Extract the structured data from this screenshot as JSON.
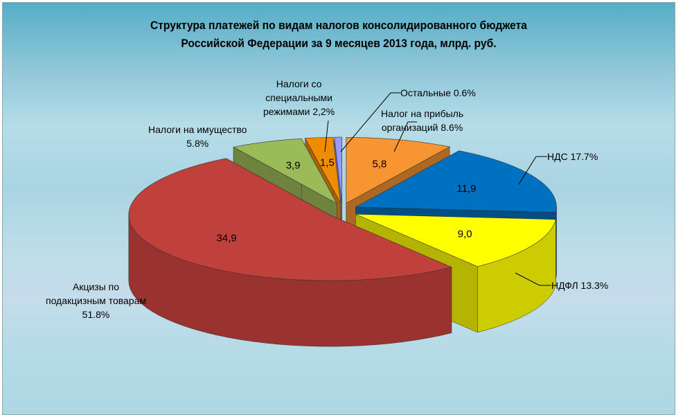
{
  "chart_data": {
    "type": "pie",
    "style": "3d-exploded",
    "title_line1": "Структура платежей по видам налогов консолидированного бюджета",
    "title_line2": "Российской Федерации за 9 месяцев  2013 года, млрд. руб.",
    "slices": [
      {
        "name": "Налог на прибыль организаций",
        "label_line1": "Налог на прибыль",
        "label_line2": "организаций 8.6%",
        "value": 5.8,
        "data_label": "5,8",
        "color": "#f79532"
      },
      {
        "name": "НДС",
        "label_line1": "НДС 17.7%",
        "value": 11.9,
        "data_label": "11,9",
        "color": "#0070c0"
      },
      {
        "name": "НДФЛ",
        "label_line1": "НДФЛ 13.3%",
        "value": 9.0,
        "data_label": "9,0",
        "color": "#ffff00"
      },
      {
        "name": "Акцизы по подакцизным товарам",
        "label_line1": "Акцизы по",
        "label_line2": "подакцизным товарам",
        "label_line3": "51.8%",
        "value": 34.9,
        "data_label": "34,9",
        "color": "#c0403c"
      },
      {
        "name": "Налоги на имущество",
        "label_line1": "Налоги на имущество",
        "label_line2": "5.8%",
        "value": 3.9,
        "data_label": "3,9",
        "color": "#9bbb59"
      },
      {
        "name": "Налоги со специальными режимами",
        "label_line1": "Налоги со",
        "label_line2": "специальными",
        "label_line3": "режимами 2,2%",
        "value": 1.5,
        "data_label": "1,5",
        "color": "#f08c00"
      },
      {
        "name": "Остальные",
        "label_line1": "Остальные 0.6%",
        "value": 0.4,
        "data_label": "",
        "color": "#9999ff"
      }
    ]
  }
}
